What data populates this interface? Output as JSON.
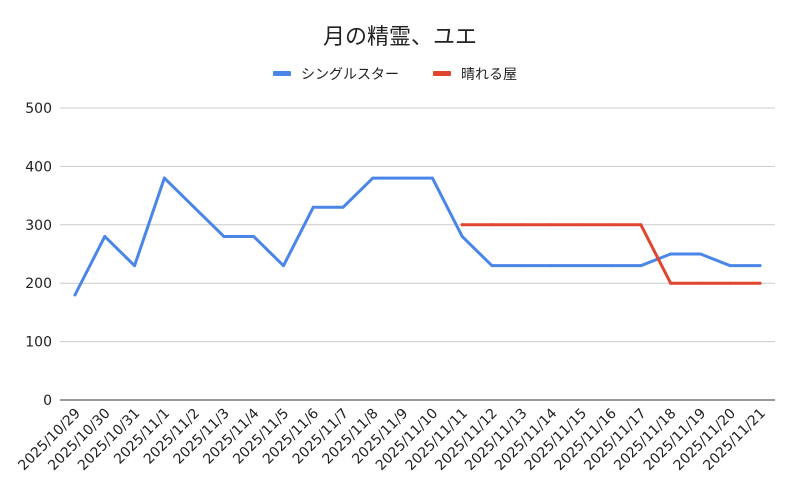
{
  "chart_data": {
    "type": "line",
    "title": "月の精霊、ユエ",
    "xlabel": "",
    "ylabel": "",
    "ylim": [
      0,
      500
    ],
    "yticks": [
      "0",
      "100",
      "200",
      "300",
      "400",
      "500"
    ],
    "grid": true,
    "legend_position": "top",
    "categories": [
      "2025/10/29",
      "2025/10/30",
      "2025/10/31",
      "2025/11/1",
      "2025/11/2",
      "2025/11/3",
      "2025/11/4",
      "2025/11/5",
      "2025/11/6",
      "2025/11/7",
      "2025/11/8",
      "2025/11/9",
      "2025/11/10",
      "2025/11/11",
      "2025/11/12",
      "2025/11/13",
      "2025/11/14",
      "2025/11/15",
      "2025/11/16",
      "2025/11/17",
      "2025/11/18",
      "2025/11/19",
      "2025/11/20",
      "2025/11/21"
    ],
    "series": [
      {
        "name": "シングルスター",
        "color": "#4a86e8",
        "values": [
          180,
          280,
          230,
          380,
          330,
          280,
          280,
          230,
          330,
          330,
          380,
          380,
          380,
          280,
          230,
          230,
          230,
          230,
          230,
          230,
          250,
          250,
          230,
          230
        ]
      },
      {
        "name": "晴れる屋",
        "color": "#e0452f",
        "values": [
          null,
          null,
          null,
          null,
          null,
          null,
          null,
          null,
          null,
          null,
          null,
          null,
          null,
          300,
          300,
          300,
          300,
          300,
          300,
          300,
          200,
          200,
          200,
          200
        ]
      }
    ]
  }
}
